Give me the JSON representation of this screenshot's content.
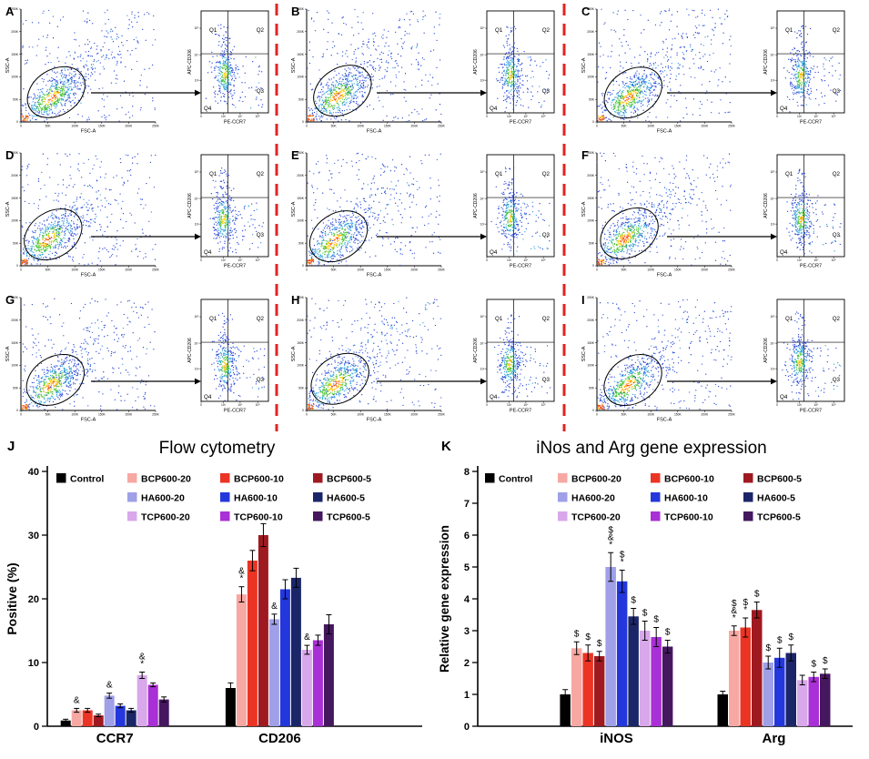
{
  "figure": {
    "panels_flow": [
      {
        "letter": "A"
      },
      {
        "letter": "B"
      },
      {
        "letter": "C"
      },
      {
        "letter": "D"
      },
      {
        "letter": "E"
      },
      {
        "letter": "F"
      },
      {
        "letter": "G"
      },
      {
        "letter": "H"
      },
      {
        "letter": "I"
      }
    ],
    "flow_axes": {
      "scatter_xlabel": "FSC-A",
      "scatter_ylabel": "SSC-A",
      "scatter_xticks": [
        "0",
        "50K",
        "100K",
        "150K",
        "200K",
        "250K"
      ],
      "scatter_yticks": [
        "0",
        "50K",
        "100K",
        "150K",
        "200K",
        "250K"
      ],
      "quad_xlabel": "PE-CCR7",
      "quad_ylabel": "APC-CD206",
      "quad_xticks": [
        "0",
        "10³",
        "10⁴",
        "10⁵"
      ],
      "quad_yticks": [
        "10³",
        "10⁴",
        "10⁵"
      ],
      "quadrants": [
        "Q1",
        "Q2",
        "Q3",
        "Q4"
      ]
    }
  },
  "panelJ": {
    "letter": "J"
  },
  "panelK": {
    "letter": "K"
  },
  "chart_data": [
    {
      "type": "bar",
      "title": "Flow cytometry",
      "ylabel": "Positive (%)",
      "ylim": [
        0,
        40
      ],
      "yticks": [
        0,
        10,
        20,
        30,
        40
      ],
      "categories": [
        "CCR7",
        "CD206"
      ],
      "legend_rows": [
        [
          "Control",
          "BCP600-20",
          "BCP600-10",
          "BCP600-5"
        ],
        [
          "HA600-20",
          "HA600-10",
          "HA600-5"
        ],
        [
          "TCP600-20",
          "TCP600-10",
          "TCP600-5"
        ]
      ],
      "series": [
        {
          "name": "Control",
          "color": "#000000",
          "values": [
            0.9,
            6.0
          ],
          "errors": [
            0.2,
            0.8
          ],
          "ann": [
            "",
            ""
          ]
        },
        {
          "name": "BCP600-20",
          "color": "#F7A8A2",
          "values": [
            2.5,
            20.7
          ],
          "errors": [
            0.3,
            1.2
          ],
          "ann": [
            "&",
            "&*"
          ]
        },
        {
          "name": "BCP600-10",
          "color": "#EC3424",
          "values": [
            2.5,
            26.0
          ],
          "errors": [
            0.3,
            1.6
          ],
          "ann": [
            "",
            ""
          ]
        },
        {
          "name": "BCP600-5",
          "color": "#9E1A20",
          "values": [
            1.7,
            30.0
          ],
          "errors": [
            0.2,
            1.8
          ],
          "ann": [
            "",
            ""
          ]
        },
        {
          "name": "HA600-20",
          "color": "#9FA0E8",
          "values": [
            4.8,
            16.8
          ],
          "errors": [
            0.4,
            0.8
          ],
          "ann": [
            "&",
            "&"
          ]
        },
        {
          "name": "HA600-10",
          "color": "#2337DC",
          "values": [
            3.2,
            21.5
          ],
          "errors": [
            0.3,
            1.5
          ],
          "ann": [
            "",
            ""
          ]
        },
        {
          "name": "HA600-5",
          "color": "#1B2668",
          "values": [
            2.5,
            23.3
          ],
          "errors": [
            0.3,
            1.5
          ],
          "ann": [
            "",
            ""
          ]
        },
        {
          "name": "TCP600-20",
          "color": "#D8A8EA",
          "values": [
            8.0,
            12.0
          ],
          "errors": [
            0.5,
            0.7
          ],
          "ann": [
            "&*",
            "&"
          ]
        },
        {
          "name": "TCP600-10",
          "color": "#A92FD6",
          "values": [
            6.5,
            13.5
          ],
          "errors": [
            0.3,
            0.8
          ],
          "ann": [
            "",
            ""
          ]
        },
        {
          "name": "TCP600-5",
          "color": "#45175F",
          "values": [
            4.2,
            16.0
          ],
          "errors": [
            0.4,
            1.5
          ],
          "ann": [
            "",
            ""
          ]
        }
      ]
    },
    {
      "type": "bar",
      "title": "iNos and Arg gene expression",
      "ylabel": "Relative gene expression",
      "ylim": [
        0,
        8
      ],
      "yticks": [
        0,
        1,
        2,
        3,
        4,
        5,
        6,
        7,
        8
      ],
      "categories": [
        "iNOS",
        "Arg"
      ],
      "legend_rows": [
        [
          "Control",
          "BCP600-20",
          "BCP600-10",
          "BCP600-5"
        ],
        [
          "HA600-20",
          "HA600-10",
          "HA600-5"
        ],
        [
          "TCP600-20",
          "TCP600-10",
          "TCP600-5"
        ]
      ],
      "series": [
        {
          "name": "Control",
          "color": "#000000",
          "values": [
            1.0,
            1.0
          ],
          "errors": [
            0.15,
            0.1
          ],
          "ann": [
            "",
            ""
          ]
        },
        {
          "name": "BCP600-20",
          "color": "#F7A8A2",
          "values": [
            2.45,
            3.0
          ],
          "errors": [
            0.2,
            0.15
          ],
          "ann": [
            "$",
            "$&*"
          ]
        },
        {
          "name": "BCP600-10",
          "color": "#EC3424",
          "values": [
            2.3,
            3.1
          ],
          "errors": [
            0.25,
            0.3
          ],
          "ann": [
            "$",
            "$*"
          ]
        },
        {
          "name": "BCP600-5",
          "color": "#9E1A20",
          "values": [
            2.2,
            3.65
          ],
          "errors": [
            0.15,
            0.25
          ],
          "ann": [
            "$",
            "$"
          ]
        },
        {
          "name": "HA600-20",
          "color": "#9FA0E8",
          "values": [
            5.0,
            2.0
          ],
          "errors": [
            0.45,
            0.2
          ],
          "ann": [
            "$&*",
            "$"
          ]
        },
        {
          "name": "HA600-10",
          "color": "#2337DC",
          "values": [
            4.55,
            2.15
          ],
          "errors": [
            0.35,
            0.3
          ],
          "ann": [
            "$*",
            "$"
          ]
        },
        {
          "name": "HA600-5",
          "color": "#1B2668",
          "values": [
            3.45,
            2.3
          ],
          "errors": [
            0.25,
            0.25
          ],
          "ann": [
            "$",
            "$"
          ]
        },
        {
          "name": "TCP600-20",
          "color": "#D8A8EA",
          "values": [
            3.0,
            1.45
          ],
          "errors": [
            0.3,
            0.15
          ],
          "ann": [
            "$",
            ""
          ]
        },
        {
          "name": "TCP600-10",
          "color": "#A92FD6",
          "values": [
            2.8,
            1.55
          ],
          "errors": [
            0.3,
            0.15
          ],
          "ann": [
            "$",
            "$"
          ]
        },
        {
          "name": "TCP600-5",
          "color": "#45175F",
          "values": [
            2.5,
            1.65
          ],
          "errors": [
            0.2,
            0.15
          ],
          "ann": [
            "$",
            "$"
          ]
        }
      ]
    }
  ]
}
